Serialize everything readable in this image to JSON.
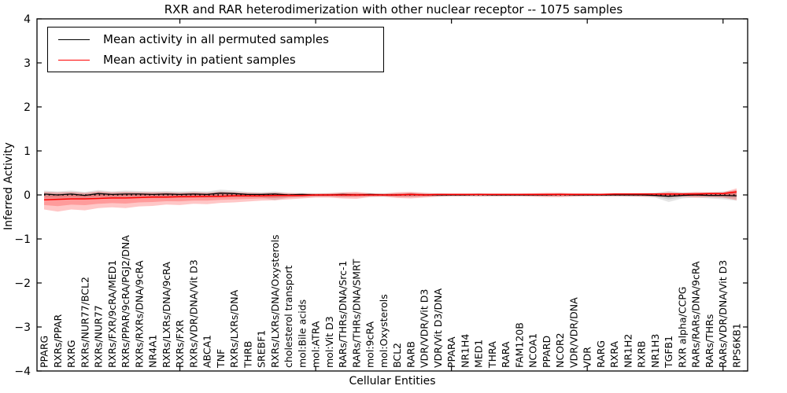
{
  "chart_data": {
    "type": "line",
    "title": "RXR and RAR heterodimerization with other nuclear receptor -- 1075 samples",
    "xlabel": "Cellular Entities",
    "ylabel": "Inferred Activity",
    "ylim": [
      -4,
      4
    ],
    "yticks": [
      -4,
      -3,
      -2,
      -1,
      0,
      1,
      2,
      3,
      4
    ],
    "x_major_tick_indices": [
      10,
      20,
      30,
      40,
      50
    ],
    "grid": false,
    "legend_position": "upper-left-inside",
    "zero_line": {
      "y": 0,
      "style": "dotted",
      "color": "#000000"
    },
    "categories": [
      "PPARG",
      "RXRs/PPAR",
      "RXRG",
      "RXRs/NUR77/BCL2",
      "RXRs/NUR77",
      "RXRs/FXR/9cRA/MED1",
      "RXRs/PPAR/9cRA/PGJ2/DNA",
      "RXRs/RXRs/DNA/9cRA",
      "NR4A1",
      "RXRs/LXRs/DNA/9cRA",
      "RXRs/FXR",
      "RXRs/VDR/DNA/Vit D3",
      "ABCA1",
      "TNF",
      "RXRs/LXRs/DNA",
      "THRB",
      "SREBF1",
      "RXRs/LXRs/DNA/Oxysterols",
      "cholesterol transport",
      "mol:Bile acids",
      "mol:ATRA",
      "mol:Vit D3",
      "RARs/THRs/DNA/Src-1",
      "RARs/THRs/DNA/SMRT",
      "mol:9cRA",
      "mol:Oxysterols",
      "BCL2",
      "RARB",
      "VDR/VDR/Vit D3",
      "VDR/Vit D3/DNA",
      "PPARA",
      "NR1H4",
      "MED1",
      "THRA",
      "RARA",
      "FAM120B",
      "NCOA1",
      "PPARD",
      "NCOR2",
      "VDR/VDR/DNA",
      "VDR",
      "RARG",
      "RXRA",
      "NR1H2",
      "RXRB",
      "NR1H3",
      "TGFB1",
      "RXR alpha/CCPG",
      "RARs/RARs/DNA/9cRA",
      "RARs/THRs",
      "RARs/VDR/DNA/Vit D3",
      "RPS6KB1"
    ],
    "series": [
      {
        "name": "Mean activity in all permuted samples",
        "color": "#000000",
        "band_color": "#000000",
        "values": [
          0.02,
          0,
          0.02,
          -0.01,
          0.03,
          0.01,
          0.02,
          0.02,
          0.01,
          0.02,
          0.01,
          0.02,
          0.01,
          0.04,
          0.03,
          0.01,
          0.01,
          0.02,
          0,
          0.01,
          0,
          0,
          0.01,
          0,
          0.01,
          0,
          0,
          0.01,
          0,
          0,
          0,
          0,
          0.01,
          0,
          0,
          0,
          0,
          0,
          0.01,
          0,
          0,
          0,
          0,
          0,
          0,
          -0.01,
          -0.03,
          -0.01,
          0,
          -0.01,
          -0.01,
          -0.02
        ],
        "band_upper": [
          0.1,
          0.08,
          0.1,
          0.07,
          0.11,
          0.08,
          0.1,
          0.09,
          0.08,
          0.09,
          0.08,
          0.09,
          0.08,
          0.12,
          0.1,
          0.07,
          0.06,
          0.08,
          0.05,
          0.05,
          0.04,
          0.04,
          0.05,
          0.04,
          0.04,
          0.04,
          0.04,
          0.05,
          0.04,
          0.04,
          0.03,
          0.03,
          0.04,
          0.03,
          0.03,
          0.03,
          0.03,
          0.03,
          0.04,
          0.03,
          0.03,
          0.03,
          0.03,
          0.03,
          0.04,
          0.05,
          0.09,
          0.06,
          0.05,
          0.06,
          0.08,
          0.1
        ],
        "band_lower": [
          -0.08,
          -0.09,
          -0.07,
          -0.09,
          -0.06,
          -0.08,
          -0.07,
          -0.07,
          -0.07,
          -0.07,
          -0.07,
          -0.06,
          -0.07,
          -0.06,
          -0.06,
          -0.06,
          -0.06,
          -0.12,
          -0.06,
          -0.05,
          -0.04,
          -0.04,
          -0.05,
          -0.04,
          -0.04,
          -0.04,
          -0.04,
          -0.05,
          -0.04,
          -0.04,
          -0.03,
          -0.03,
          -0.04,
          -0.03,
          -0.03,
          -0.03,
          -0.03,
          -0.03,
          -0.04,
          -0.03,
          -0.03,
          -0.03,
          -0.03,
          -0.04,
          -0.04,
          -0.06,
          -0.16,
          -0.08,
          -0.06,
          -0.08,
          -0.1,
          -0.13
        ]
      },
      {
        "name": "Mean activity in patient samples",
        "color": "#ff0000",
        "band_color": "#ff0000",
        "values": [
          -0.11,
          -0.1,
          -0.09,
          -0.09,
          -0.08,
          -0.07,
          -0.07,
          -0.06,
          -0.05,
          -0.05,
          -0.04,
          -0.04,
          -0.03,
          -0.03,
          -0.02,
          -0.02,
          -0.02,
          -0.01,
          -0.01,
          -0.01,
          0,
          0,
          0,
          0,
          0,
          0,
          0,
          0.01,
          0,
          0.01,
          0.01,
          0.01,
          0.01,
          0.01,
          0.01,
          0.01,
          0.01,
          0.01,
          0.01,
          0.01,
          0.01,
          0.01,
          0.02,
          0.02,
          0.02,
          0.02,
          0.02,
          0.02,
          0.02,
          0.03,
          0.03,
          0.07
        ],
        "band_upper": [
          0.07,
          0.06,
          0.07,
          0.05,
          0.08,
          0.06,
          0.07,
          0.06,
          0.06,
          0.06,
          0.05,
          0.06,
          0.05,
          0.07,
          0.06,
          0.05,
          0.04,
          0.05,
          0.04,
          0.03,
          0.03,
          0.04,
          0.06,
          0.07,
          0.04,
          0.03,
          0.06,
          0.07,
          0.05,
          0.03,
          0.03,
          0.03,
          0.03,
          0.03,
          0.03,
          0.03,
          0.04,
          0.05,
          0.05,
          0.04,
          0.04,
          0.03,
          0.04,
          0.04,
          0.04,
          0.04,
          0.06,
          0.05,
          0.07,
          0.06,
          0.06,
          0.15
        ],
        "band_lower": [
          -0.33,
          -0.38,
          -0.33,
          -0.35,
          -0.3,
          -0.28,
          -0.3,
          -0.26,
          -0.25,
          -0.22,
          -0.23,
          -0.2,
          -0.21,
          -0.18,
          -0.17,
          -0.15,
          -0.13,
          -0.12,
          -0.1,
          -0.08,
          -0.06,
          -0.06,
          -0.08,
          -0.09,
          -0.05,
          -0.04,
          -0.07,
          -0.08,
          -0.06,
          -0.04,
          -0.03,
          -0.03,
          -0.03,
          -0.03,
          -0.03,
          -0.03,
          -0.04,
          -0.05,
          -0.05,
          -0.04,
          -0.03,
          -0.03,
          -0.03,
          -0.03,
          -0.04,
          -0.04,
          -0.05,
          -0.04,
          -0.06,
          -0.05,
          -0.06,
          -0.12
        ]
      }
    ]
  }
}
